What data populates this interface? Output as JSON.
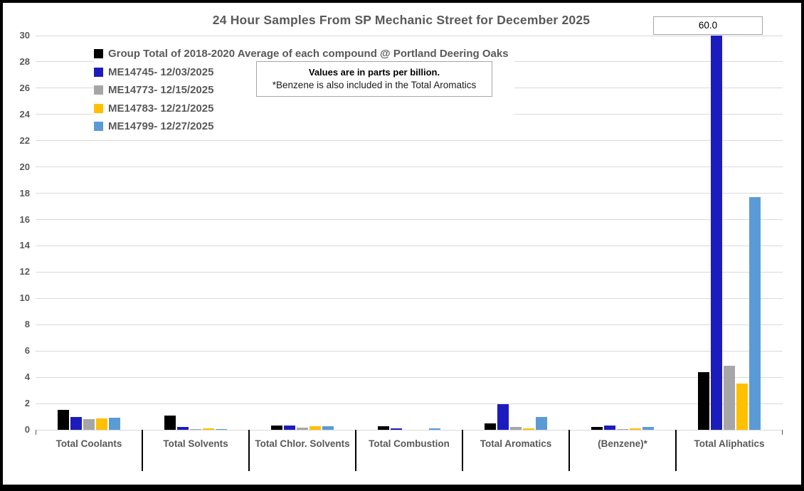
{
  "title": "24 Hour Samples From SP Mechanic Street for December 2025",
  "note": {
    "line1": "Values are in parts per billion.",
    "line2": "*Benzene is also included in the Total Aromatics"
  },
  "annotation": {
    "value_label": "60.0",
    "applies_to": "ME14745- 12/03/2025 bar at Total Aliphatics (clipped at axis max 30)"
  },
  "colors": {
    "text_gray": "#595959",
    "gridline": "#d9d9d9",
    "separator": "#000000"
  },
  "chart_data": {
    "type": "bar",
    "title": "24 Hour Samples From SP Mechanic Street for December 2025",
    "xlabel": "",
    "ylabel": "",
    "ylim": [
      0,
      30
    ],
    "ytick_step": 2,
    "grid": true,
    "legend_position": "top-left-inside",
    "categories": [
      "Total Coolants",
      "Total Solvents",
      "Total Chlor. Solvents",
      "Total Combustion",
      "Total Aromatics",
      "(Benzene)*",
      "Total Aliphatics"
    ],
    "series": [
      {
        "name": "Group Total of 2018-2020 Average of each compound @ Portland Deering Oaks",
        "color": "#000000",
        "values": [
          1.5,
          1.1,
          0.3,
          0.25,
          0.5,
          0.2,
          4.4
        ]
      },
      {
        "name": "ME14745- 12/03/2025",
        "color": "#1c1cbe",
        "values": [
          1.0,
          0.2,
          0.35,
          0.1,
          1.95,
          0.35,
          60.0
        ]
      },
      {
        "name": "ME14773- 12/15/2025",
        "color": "#a6a6a6",
        "values": [
          0.8,
          0.05,
          0.15,
          0.0,
          0.2,
          0.08,
          4.85
        ]
      },
      {
        "name": "ME14783- 12/21/2025",
        "color": "#ffc000",
        "values": [
          0.85,
          0.1,
          0.25,
          0.0,
          0.1,
          0.1,
          3.5
        ]
      },
      {
        "name": "ME14799- 12/27/2025",
        "color": "#5b9bd5",
        "values": [
          0.9,
          0.07,
          0.25,
          0.1,
          0.95,
          0.2,
          17.7
        ]
      }
    ]
  }
}
